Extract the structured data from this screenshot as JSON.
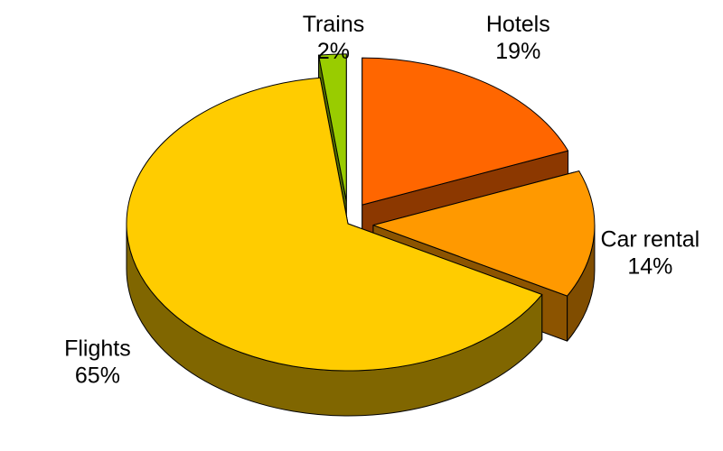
{
  "chart_data": {
    "type": "pie",
    "style": "3d-exploded",
    "slices": [
      {
        "name": "Hotels",
        "value": 19,
        "label": "19%",
        "color": "#FF6600"
      },
      {
        "name": "Car rental",
        "value": 14,
        "label": "14%",
        "color": "#FF9900"
      },
      {
        "name": "Flights",
        "value": 65,
        "label": "65%",
        "color": "#FFCC00"
      },
      {
        "name": "Trains",
        "value": 2,
        "label": "2%",
        "color": "#99CC00"
      }
    ],
    "title": "",
    "legend": "none"
  }
}
